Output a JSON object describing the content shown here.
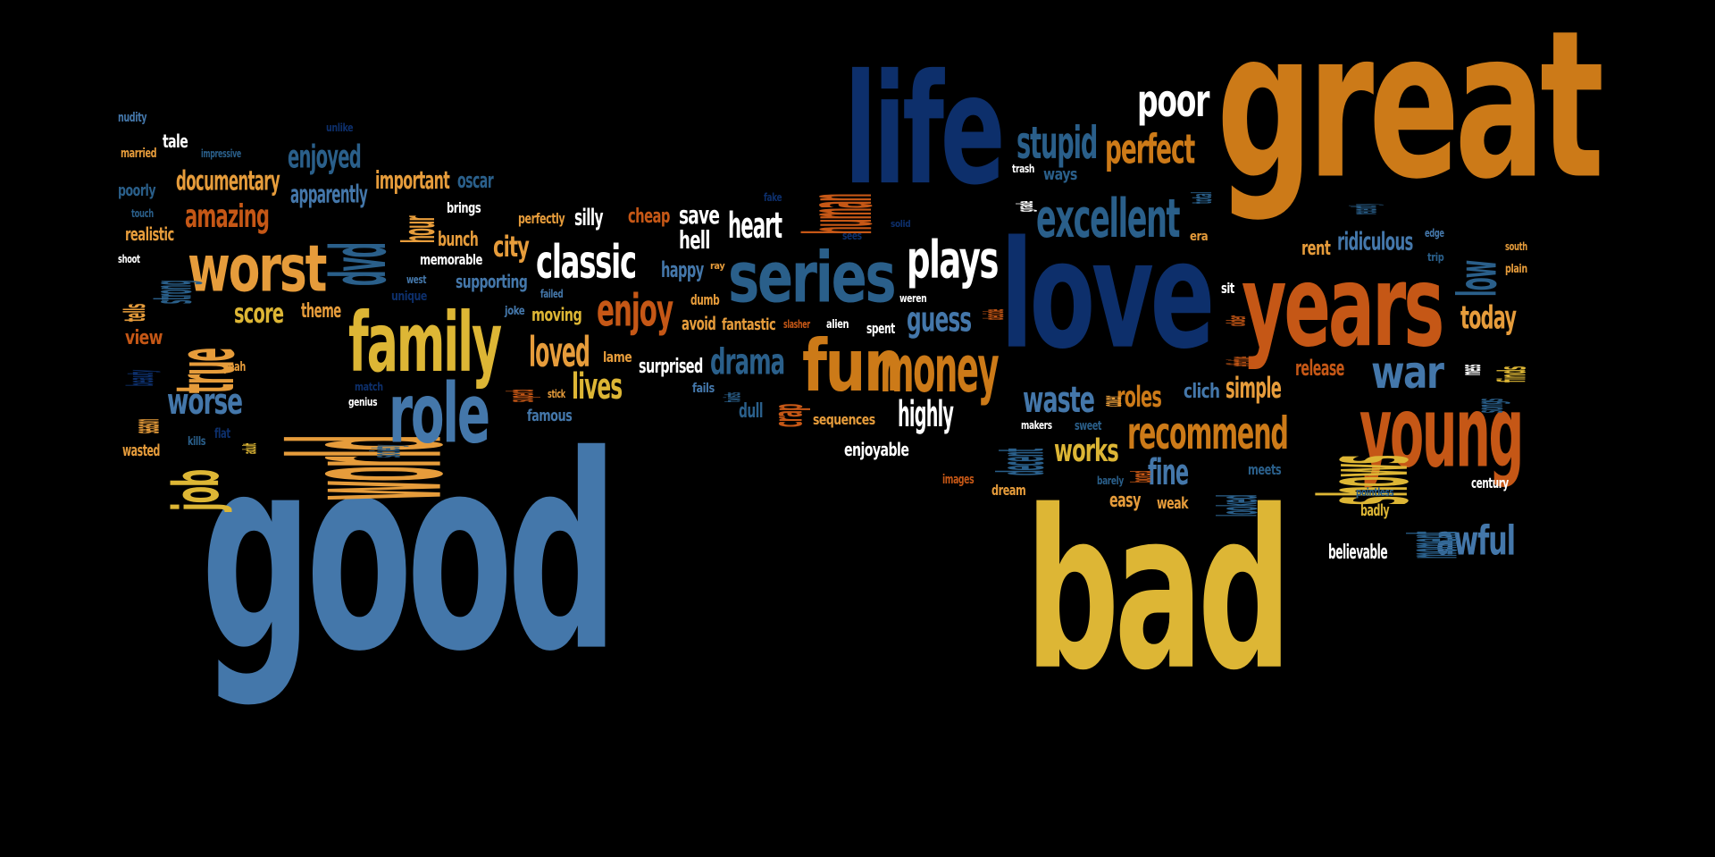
{
  "colors": {
    "background": "#000000",
    "light_blue": "#4477aa",
    "navy": "#0d2f6b",
    "teal_blue": "#2a5f8a",
    "orange": "#cc7a18",
    "dark_orange": "#c55716",
    "amber": "#e69c3b",
    "gold": "#ddb635",
    "white": "#ffffff"
  },
  "words": [
    {
      "text": "good",
      "color": "#4477aa"
    },
    {
      "text": "bad",
      "color": "#ddb635"
    },
    {
      "text": "great",
      "color": "#cc7a18"
    },
    {
      "text": "love",
      "color": "#0d2f6b"
    },
    {
      "text": "life",
      "color": "#0d2f6b"
    },
    {
      "text": "years",
      "color": "#c55716"
    },
    {
      "text": "young",
      "color": "#c55716"
    },
    {
      "text": "world",
      "color": "#e69c3b"
    },
    {
      "text": "family",
      "color": "#ddb635"
    },
    {
      "text": "role",
      "color": "#4477aa"
    },
    {
      "text": "worst",
      "color": "#e69c3b"
    },
    {
      "text": "series",
      "color": "#2a5f8a"
    },
    {
      "text": "fun",
      "color": "#cc7a18"
    },
    {
      "text": "money",
      "color": "#cc7a18"
    },
    {
      "text": "plays",
      "color": "#ffffff"
    },
    {
      "text": "classic",
      "color": "#ffffff"
    },
    {
      "text": "excellent",
      "color": "#2a5f8a"
    },
    {
      "text": "stupid",
      "color": "#2a5f8a"
    },
    {
      "text": "perfect",
      "color": "#cc7a18"
    },
    {
      "text": "poor",
      "color": "#ffffff"
    },
    {
      "text": "recommend",
      "color": "#cc7a18"
    },
    {
      "text": "shows",
      "color": "#ddb635"
    },
    {
      "text": "war",
      "color": "#4477aa"
    },
    {
      "text": "awful",
      "color": "#4477aa"
    },
    {
      "text": "true",
      "color": "#e69c3b"
    },
    {
      "text": "job",
      "color": "#ddb635"
    },
    {
      "text": "dvd",
      "color": "#2a5f8a"
    },
    {
      "text": "enjoy",
      "color": "#c55716"
    },
    {
      "text": "heart",
      "color": "#ffffff"
    },
    {
      "text": "human",
      "color": "#c55716"
    },
    {
      "text": "drama",
      "color": "#2a5f8a"
    },
    {
      "text": "loved",
      "color": "#e69c3b"
    },
    {
      "text": "lives",
      "color": "#ddb635"
    },
    {
      "text": "guess",
      "color": "#4477aa"
    },
    {
      "text": "highly",
      "color": "#ffffff"
    },
    {
      "text": "waste",
      "color": "#4477aa"
    },
    {
      "text": "works",
      "color": "#ddb635"
    },
    {
      "text": "roles",
      "color": "#cc7a18"
    },
    {
      "text": "simple",
      "color": "#e69c3b"
    },
    {
      "text": "fine",
      "color": "#4477aa"
    },
    {
      "text": "today",
      "color": "#e69c3b"
    },
    {
      "text": "low",
      "color": "#2a5f8a"
    },
    {
      "text": "rent",
      "color": "#e69c3b"
    },
    {
      "text": "ridiculous",
      "color": "#4477aa"
    },
    {
      "text": "release",
      "color": "#c55716"
    },
    {
      "text": "moment",
      "color": "#2a5f8a"
    },
    {
      "text": "believable",
      "color": "#ffffff"
    },
    {
      "text": "worse",
      "color": "#4477aa"
    },
    {
      "text": "amazing",
      "color": "#c55716"
    },
    {
      "text": "documentary",
      "color": "#e69c3b"
    },
    {
      "text": "enjoyed",
      "color": "#2a5f8a"
    },
    {
      "text": "apparently",
      "color": "#4477aa"
    },
    {
      "text": "important",
      "color": "#e69c3b"
    },
    {
      "text": "oscar",
      "color": "#2a5f8a"
    },
    {
      "text": "score",
      "color": "#ddb635"
    },
    {
      "text": "theme",
      "color": "#e69c3b"
    },
    {
      "text": "view",
      "color": "#c55716"
    },
    {
      "text": "strong",
      "color": "#2a5f8a"
    },
    {
      "text": "realistic",
      "color": "#e69c3b"
    },
    {
      "text": "poorly",
      "color": "#2a5f8a"
    },
    {
      "text": "married",
      "color": "#e69c3b"
    },
    {
      "text": "tale",
      "color": "#ffffff"
    },
    {
      "text": "nudity",
      "color": "#4477aa"
    },
    {
      "text": "impressive",
      "color": "#2a5f8a"
    },
    {
      "text": "unlike",
      "color": "#0d2f6b"
    },
    {
      "text": "touch",
      "color": "#2a5f8a"
    },
    {
      "text": "shoot",
      "color": "#ffffff"
    },
    {
      "text": "tells",
      "color": "#e69c3b"
    },
    {
      "text": "beauty",
      "color": "#0d2f6b"
    },
    {
      "text": "season",
      "color": "#e69c3b"
    },
    {
      "text": "wasted",
      "color": "#e69c3b"
    },
    {
      "text": "kills",
      "color": "#2a5f8a"
    },
    {
      "text": "flat",
      "color": "#0d2f6b"
    },
    {
      "text": "adult",
      "color": "#ddb635"
    },
    {
      "text": "yeah",
      "color": "#e69c3b"
    },
    {
      "text": "hour",
      "color": "#e69c3b"
    },
    {
      "text": "bunch",
      "color": "#e69c3b"
    },
    {
      "text": "brings",
      "color": "#ffffff"
    },
    {
      "text": "memorable",
      "color": "#ffffff"
    },
    {
      "text": "unique",
      "color": "#0d2f6b"
    },
    {
      "text": "west",
      "color": "#4477aa"
    },
    {
      "text": "supporting",
      "color": "#4477aa"
    },
    {
      "text": "city",
      "color": "#e69c3b"
    },
    {
      "text": "match",
      "color": "#0d2f6b"
    },
    {
      "text": "genius",
      "color": "#ffffff"
    },
    {
      "text": "society",
      "color": "#2a5f8a"
    },
    {
      "text": "superb",
      "color": "#c55716"
    },
    {
      "text": "joke",
      "color": "#4477aa"
    },
    {
      "text": "failed",
      "color": "#4477aa"
    },
    {
      "text": "moving",
      "color": "#ddb635"
    },
    {
      "text": "famous",
      "color": "#4477aa"
    },
    {
      "text": "stick",
      "color": "#e69c3b"
    },
    {
      "text": "perfectly",
      "color": "#e69c3b"
    },
    {
      "text": "silly",
      "color": "#ffffff"
    },
    {
      "text": "cheap",
      "color": "#c55716"
    },
    {
      "text": "save",
      "color": "#ffffff"
    },
    {
      "text": "hell",
      "color": "#ffffff"
    },
    {
      "text": "happy",
      "color": "#4477aa"
    },
    {
      "text": "ray",
      "color": "#e69c3b"
    },
    {
      "text": "dumb",
      "color": "#e69c3b"
    },
    {
      "text": "avoid",
      "color": "#e69c3b"
    },
    {
      "text": "lame",
      "color": "#e69c3b"
    },
    {
      "text": "surprised",
      "color": "#ffffff"
    },
    {
      "text": "fails",
      "color": "#4477aa"
    },
    {
      "text": "twists",
      "color": "#2a5f8a"
    },
    {
      "text": "dull",
      "color": "#2a5f8a"
    },
    {
      "text": "crap",
      "color": "#c55716"
    },
    {
      "text": "fantastic",
      "color": "#e69c3b"
    },
    {
      "text": "slasher",
      "color": "#c55716"
    },
    {
      "text": "fake",
      "color": "#0d2f6b"
    },
    {
      "text": "sees",
      "color": "#0d2f6b"
    },
    {
      "text": "solid",
      "color": "#0d2f6b"
    },
    {
      "text": "alien",
      "color": "#ffffff"
    },
    {
      "text": "spent",
      "color": "#ffffff"
    },
    {
      "text": "weren",
      "color": "#ffffff"
    },
    {
      "text": "sequences",
      "color": "#e69c3b"
    },
    {
      "text": "enjoyable",
      "color": "#ffffff"
    },
    {
      "text": "decide",
      "color": "#c55716"
    },
    {
      "text": "decent",
      "color": "#2a5f8a"
    },
    {
      "text": "images",
      "color": "#c55716"
    },
    {
      "text": "dream",
      "color": "#e69c3b"
    },
    {
      "text": "makers",
      "color": "#ffffff"
    },
    {
      "text": "sweet",
      "color": "#2a5f8a"
    },
    {
      "text": "cover",
      "color": "#e69c3b"
    },
    {
      "text": "barely",
      "color": "#2a5f8a"
    },
    {
      "text": "bored",
      "color": "#c55716"
    },
    {
      "text": "easy",
      "color": "#e69c3b"
    },
    {
      "text": "weak",
      "color": "#e69c3b"
    },
    {
      "text": "clich",
      "color": "#4477aa"
    },
    {
      "text": "looked",
      "color": "#2a5f8a"
    },
    {
      "text": "meets",
      "color": "#2a5f8a"
    },
    {
      "text": "trash",
      "color": "#ffffff"
    },
    {
      "text": "grade",
      "color": "#ffffff"
    },
    {
      "text": "ways",
      "color": "#2a5f8a"
    },
    {
      "text": "total",
      "color": "#2a5f8a"
    },
    {
      "text": "era",
      "color": "#e69c3b"
    },
    {
      "text": "sit",
      "color": "#ffffff"
    },
    {
      "text": "older",
      "color": "#c55716"
    },
    {
      "text": "effective",
      "color": "#c55716"
    },
    {
      "text": "recently",
      "color": "#2a5f8a"
    },
    {
      "text": "edge",
      "color": "#4477aa"
    },
    {
      "text": "trip",
      "color": "#2a5f8a"
    },
    {
      "text": "south",
      "color": "#e69c3b"
    },
    {
      "text": "plain",
      "color": "#e69c3b"
    },
    {
      "text": "mess",
      "color": "#ffffff"
    },
    {
      "text": "songs",
      "color": "#2a5f8a"
    },
    {
      "text": "finds",
      "color": "#ddb635"
    },
    {
      "text": "century",
      "color": "#ffffff"
    },
    {
      "text": "pointless",
      "color": "#2a5f8a"
    },
    {
      "text": "badly",
      "color": "#ddb635"
    }
  ]
}
